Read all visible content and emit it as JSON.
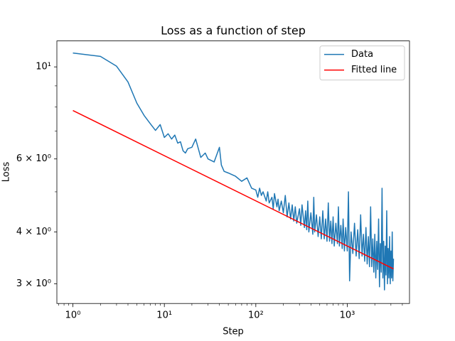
{
  "chart_data": {
    "type": "line",
    "title": "Loss as a function of step",
    "xlabel": "Step",
    "ylabel": "Loss",
    "xscale": "log",
    "yscale": "log",
    "xlim": [
      0.668,
      4790
    ],
    "ylim": [
      2.69,
      11.55
    ],
    "xticks": [
      {
        "value": 1,
        "label": "10⁰"
      },
      {
        "value": 10,
        "label": "10¹"
      },
      {
        "value": 100,
        "label": "10²"
      },
      {
        "value": 1000,
        "label": "10³"
      }
    ],
    "xminorticks": [
      0.7,
      0.8,
      0.9,
      2,
      3,
      4,
      5,
      6,
      7,
      8,
      9,
      20,
      30,
      40,
      50,
      60,
      70,
      80,
      90,
      200,
      300,
      400,
      500,
      600,
      700,
      800,
      900,
      2000,
      3000,
      4000
    ],
    "yticks": [
      {
        "value": 3,
        "label": "3 × 10⁰"
      },
      {
        "value": 4,
        "label": "4 × 10⁰"
      },
      {
        "value": 6,
        "label": "6 × 10⁰"
      },
      {
        "value": 10,
        "label": "10¹"
      }
    ],
    "yminorticks": [
      5,
      7,
      8,
      9
    ],
    "grid": false,
    "legend": "upper right",
    "series": [
      {
        "name": "Data",
        "color": "#1f77b4",
        "x": [
          1,
          2,
          3,
          4,
          5,
          6,
          7,
          8,
          9,
          10,
          11,
          12,
          13,
          14,
          15,
          16,
          17,
          18,
          20,
          22,
          25,
          28,
          30,
          35,
          40,
          42,
          45,
          50,
          60,
          70,
          80,
          90,
          100,
          105,
          110,
          115,
          120,
          130,
          135,
          140,
          150,
          155,
          160,
          170,
          175,
          180,
          190,
          200,
          210,
          220,
          230,
          240,
          250,
          260,
          270,
          280,
          300,
          310,
          320,
          340,
          350,
          360,
          370,
          380,
          400,
          420,
          430,
          440,
          460,
          480,
          500,
          520,
          540,
          560,
          580,
          600,
          620,
          640,
          660,
          680,
          700,
          720,
          750,
          780,
          800,
          820,
          850,
          880,
          900,
          930,
          960,
          1000,
          1030,
          1060,
          1100,
          1150,
          1200,
          1250,
          1300,
          1350,
          1400,
          1450,
          1500,
          1550,
          1600,
          1650,
          1700,
          1750,
          1800,
          1850,
          1900,
          1950,
          2000,
          2050,
          2100,
          2150,
          2200,
          2250,
          2300,
          2350,
          2400,
          2450,
          2500,
          2550,
          2600,
          2650,
          2700,
          2750,
          2800,
          2850,
          2900,
          2950,
          3000,
          3050,
          3100,
          3150,
          3200
        ],
        "values": [
          10.8,
          10.6,
          10.04,
          9.2,
          8.18,
          7.64,
          7.3,
          7.03,
          7.26,
          6.76,
          6.9,
          6.7,
          6.85,
          6.55,
          6.6,
          6.28,
          6.2,
          6.35,
          6.4,
          6.7,
          6.05,
          6.2,
          6.0,
          5.9,
          6.4,
          5.8,
          5.6,
          5.55,
          5.45,
          5.3,
          5.4,
          5.1,
          5.05,
          4.85,
          5.1,
          4.9,
          5.0,
          4.75,
          5.0,
          4.7,
          4.85,
          4.55,
          4.95,
          4.6,
          4.8,
          4.5,
          4.75,
          4.45,
          4.9,
          4.35,
          4.7,
          4.3,
          4.65,
          4.25,
          4.6,
          4.2,
          4.55,
          4.15,
          4.65,
          4.1,
          4.5,
          4.05,
          4.75,
          4.0,
          4.45,
          3.95,
          4.85,
          4.0,
          4.4,
          3.9,
          4.35,
          3.85,
          4.5,
          3.85,
          4.3,
          3.8,
          4.7,
          3.8,
          4.25,
          3.75,
          4.35,
          3.7,
          4.2,
          3.75,
          4.6,
          3.7,
          4.15,
          3.65,
          4.3,
          3.6,
          4.1,
          3.6,
          5.0,
          3.05,
          4.0,
          3.55,
          4.2,
          3.5,
          4.05,
          3.45,
          4.4,
          3.5,
          3.95,
          3.4,
          4.1,
          3.35,
          3.9,
          3.3,
          4.6,
          3.3,
          3.85,
          3.2,
          3.95,
          3.1,
          3.8,
          3.25,
          4.3,
          2.95,
          3.75,
          3.2,
          5.1,
          3.1,
          3.8,
          2.9,
          3.7,
          3.15,
          4.5,
          3.0,
          3.65,
          3.1,
          3.9,
          3.0,
          3.6,
          3.1,
          4.0,
          3.05,
          3.45
        ]
      },
      {
        "name": "Fitted line",
        "color": "#ff0000",
        "x": [
          1,
          3200
        ],
        "values": [
          7.85,
          3.26
        ]
      }
    ]
  }
}
